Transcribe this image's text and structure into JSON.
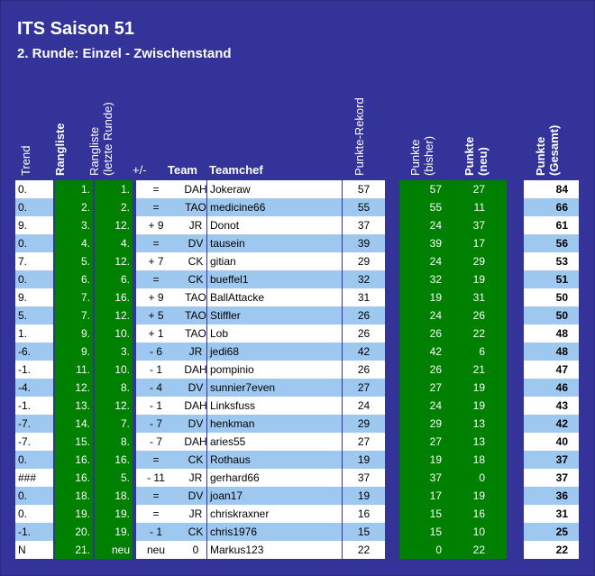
{
  "title": "ITS Saison 51",
  "subtitle": "2. Runde: Einzel - Zwischenstand",
  "headers": {
    "trend": "Trend",
    "rangliste": "Rangliste",
    "rangliste_prev": "Rangliste",
    "rangliste_prev_sub": "(letzte Runde)",
    "plusminus": "+/-",
    "team": "Team",
    "teamchef": "Teamchef",
    "rekord": "Punkte-Rekord",
    "punkte_bisher": "Punkte",
    "punkte_bisher_sub": "(bisher)",
    "punkte_neu": "Punkte",
    "punkte_neu_sub": "(neu)",
    "punkte_gesamt": "Punkte",
    "punkte_gesamt_sub": "(Gesamt)"
  },
  "colors": {
    "background": "#333399",
    "green": "#008000",
    "row_alt": "#9ec8f0"
  },
  "rows": [
    {
      "trend": "0.",
      "rang": "1.",
      "rang_prev": "1.",
      "pm": "=",
      "team": "DAH",
      "chef": "Jokeraw",
      "rekord": "57",
      "bisher": "57",
      "neu": "27",
      "gesamt": "84"
    },
    {
      "trend": "0.",
      "rang": "2.",
      "rang_prev": "2.",
      "pm": "=",
      "team": "TAO",
      "chef": "medicine66",
      "rekord": "55",
      "bisher": "55",
      "neu": "11",
      "gesamt": "66"
    },
    {
      "trend": "9.",
      "rang": "3.",
      "rang_prev": "12.",
      "pm": "+ 9",
      "team": "JR",
      "chef": "Donot",
      "rekord": "37",
      "bisher": "24",
      "neu": "37",
      "gesamt": "61"
    },
    {
      "trend": "0.",
      "rang": "4.",
      "rang_prev": "4.",
      "pm": "=",
      "team": "DV",
      "chef": "tausein",
      "rekord": "39",
      "bisher": "39",
      "neu": "17",
      "gesamt": "56"
    },
    {
      "trend": "7.",
      "rang": "5.",
      "rang_prev": "12.",
      "pm": "+ 7",
      "team": "CK",
      "chef": "gitian",
      "rekord": "29",
      "bisher": "24",
      "neu": "29",
      "gesamt": "53"
    },
    {
      "trend": "0.",
      "rang": "6.",
      "rang_prev": "6.",
      "pm": "=",
      "team": "CK",
      "chef": "bueffel1",
      "rekord": "32",
      "bisher": "32",
      "neu": "19",
      "gesamt": "51"
    },
    {
      "trend": "9.",
      "rang": "7.",
      "rang_prev": "16.",
      "pm": "+ 9",
      "team": "TAO",
      "chef": "BallAttacke",
      "rekord": "31",
      "bisher": "19",
      "neu": "31",
      "gesamt": "50"
    },
    {
      "trend": "5.",
      "rang": "7.",
      "rang_prev": "12.",
      "pm": "+ 5",
      "team": "TAO",
      "chef": "Stiffler",
      "rekord": "26",
      "bisher": "24",
      "neu": "26",
      "gesamt": "50"
    },
    {
      "trend": "1.",
      "rang": "9.",
      "rang_prev": "10.",
      "pm": "+ 1",
      "team": "TAO",
      "chef": "Lob",
      "rekord": "26",
      "bisher": "26",
      "neu": "22",
      "gesamt": "48"
    },
    {
      "trend": "-6.",
      "rang": "9.",
      "rang_prev": "3.",
      "pm": "- 6",
      "team": "JR",
      "chef": "jedi68",
      "rekord": "42",
      "bisher": "42",
      "neu": "6",
      "gesamt": "48"
    },
    {
      "trend": "-1.",
      "rang": "11.",
      "rang_prev": "10.",
      "pm": "- 1",
      "team": "DAH",
      "chef": "pompinio",
      "rekord": "26",
      "bisher": "26",
      "neu": "21",
      "gesamt": "47"
    },
    {
      "trend": "-4.",
      "rang": "12.",
      "rang_prev": "8.",
      "pm": "- 4",
      "team": "DV",
      "chef": "sunnier7even",
      "rekord": "27",
      "bisher": "27",
      "neu": "19",
      "gesamt": "46"
    },
    {
      "trend": "-1.",
      "rang": "13.",
      "rang_prev": "12.",
      "pm": "- 1",
      "team": "DAH",
      "chef": "Linksfuss",
      "rekord": "24",
      "bisher": "24",
      "neu": "19",
      "gesamt": "43"
    },
    {
      "trend": "-7.",
      "rang": "14.",
      "rang_prev": "7.",
      "pm": "- 7",
      "team": "DV",
      "chef": "henkman",
      "rekord": "29",
      "bisher": "29",
      "neu": "13",
      "gesamt": "42"
    },
    {
      "trend": "-7.",
      "rang": "15.",
      "rang_prev": "8.",
      "pm": "- 7",
      "team": "DAH",
      "chef": "aries55",
      "rekord": "27",
      "bisher": "27",
      "neu": "13",
      "gesamt": "40"
    },
    {
      "trend": "0.",
      "rang": "16.",
      "rang_prev": "16.",
      "pm": "=",
      "team": "CK",
      "chef": "Rothaus",
      "rekord": "19",
      "bisher": "19",
      "neu": "18",
      "gesamt": "37"
    },
    {
      "trend": "###",
      "rang": "16.",
      "rang_prev": "5.",
      "pm": "- 11",
      "team": "JR",
      "chef": "gerhard66",
      "rekord": "37",
      "bisher": "37",
      "neu": "0",
      "gesamt": "37"
    },
    {
      "trend": "0.",
      "rang": "18.",
      "rang_prev": "18.",
      "pm": "=",
      "team": "DV",
      "chef": "joan17",
      "rekord": "19",
      "bisher": "17",
      "neu": "19",
      "gesamt": "36"
    },
    {
      "trend": "0.",
      "rang": "19.",
      "rang_prev": "19.",
      "pm": "=",
      "team": "JR",
      "chef": "chriskraxner",
      "rekord": "16",
      "bisher": "15",
      "neu": "16",
      "gesamt": "31"
    },
    {
      "trend": "-1.",
      "rang": "20.",
      "rang_prev": "19.",
      "pm": "- 1",
      "team": "CK",
      "chef": "chris1976",
      "rekord": "15",
      "bisher": "15",
      "neu": "10",
      "gesamt": "25"
    },
    {
      "trend": "N",
      "rang": "21.",
      "rang_prev": "neu",
      "pm": "neu",
      "team": "0",
      "chef": "Markus123",
      "rekord": "22",
      "bisher": "0",
      "neu": "22",
      "gesamt": "22"
    }
  ]
}
